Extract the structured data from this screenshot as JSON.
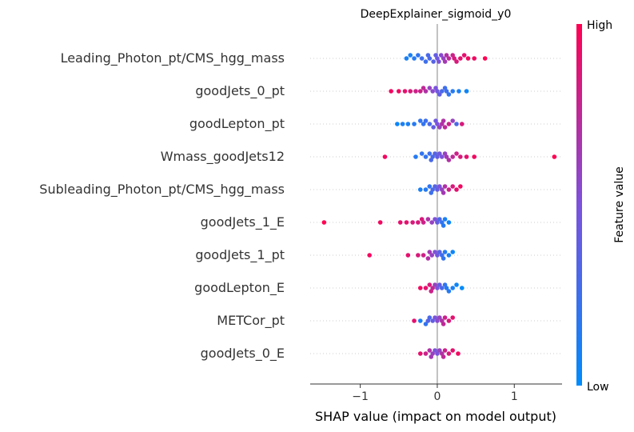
{
  "chart_data": {
    "type": "scatter",
    "subtype": "beeswarm",
    "title": "DeepExplainer_sigmoid_y0",
    "xlabel": "SHAP value (impact on model output)",
    "xlim": [
      -1.65,
      1.62
    ],
    "xticks": [
      {
        "value": -1,
        "label": "−1"
      },
      {
        "value": 0,
        "label": "0"
      },
      {
        "value": 1,
        "label": "1"
      }
    ],
    "colorbar": {
      "label": "Feature value",
      "high_label": "High",
      "low_label": "Low",
      "low_color": "#008bfb",
      "mid_color": "#7c52dc",
      "high_color": "#ff0052"
    },
    "grid": "dotted row guides",
    "features": [
      {
        "name": "Leading_Photon_pt/CMS_hgg_mass",
        "points": [
          [
            -0.4,
            0.1
          ],
          [
            -0.35,
            0.1
          ],
          [
            -0.3,
            0.15
          ],
          [
            -0.25,
            0.2
          ],
          [
            -0.2,
            0.25
          ],
          [
            -0.15,
            0.25
          ],
          [
            -0.1,
            0.3
          ],
          [
            -0.05,
            0.35
          ],
          [
            -0.02,
            0.4
          ],
          [
            0.0,
            0.45
          ],
          [
            0.02,
            0.5
          ],
          [
            0.05,
            0.55
          ],
          [
            0.08,
            0.6
          ],
          [
            0.1,
            0.65
          ],
          [
            0.15,
            0.75
          ],
          [
            0.2,
            0.8
          ],
          [
            0.25,
            0.85
          ],
          [
            0.3,
            0.9
          ],
          [
            0.35,
            0.9
          ],
          [
            0.4,
            0.95
          ],
          [
            0.48,
            0.95
          ],
          [
            0.62,
            1.0
          ],
          [
            -0.12,
            0.3
          ],
          [
            0.12,
            0.7
          ],
          [
            0.22,
            0.85
          ]
        ]
      },
      {
        "name": "goodJets_0_pt",
        "points": [
          [
            -0.6,
            0.95
          ],
          [
            -0.5,
            0.95
          ],
          [
            -0.42,
            0.9
          ],
          [
            -0.35,
            0.85
          ],
          [
            -0.28,
            0.8
          ],
          [
            -0.22,
            0.8
          ],
          [
            -0.15,
            0.7
          ],
          [
            -0.1,
            0.6
          ],
          [
            -0.06,
            0.55
          ],
          [
            -0.02,
            0.5
          ],
          [
            0.0,
            0.45
          ],
          [
            0.03,
            0.4
          ],
          [
            0.06,
            0.3
          ],
          [
            0.1,
            0.25
          ],
          [
            0.15,
            0.2
          ],
          [
            0.2,
            0.15
          ],
          [
            0.28,
            0.1
          ],
          [
            0.38,
            0.05
          ],
          [
            -0.18,
            0.75
          ],
          [
            0.12,
            0.25
          ]
        ]
      },
      {
        "name": "goodLepton_pt",
        "points": [
          [
            -0.52,
            0.05
          ],
          [
            -0.45,
            0.1
          ],
          [
            -0.38,
            0.1
          ],
          [
            -0.3,
            0.15
          ],
          [
            -0.22,
            0.2
          ],
          [
            -0.15,
            0.25
          ],
          [
            -0.1,
            0.3
          ],
          [
            -0.05,
            0.4
          ],
          [
            -0.02,
            0.45
          ],
          [
            0.0,
            0.5
          ],
          [
            0.03,
            0.6
          ],
          [
            0.06,
            0.7
          ],
          [
            0.1,
            0.75
          ],
          [
            0.15,
            0.8
          ],
          [
            0.2,
            0.6
          ],
          [
            0.25,
            0.3
          ],
          [
            0.32,
            0.85
          ],
          [
            -0.18,
            0.2
          ],
          [
            0.08,
            0.7
          ]
        ]
      },
      {
        "name": "Wmass_goodJets12",
        "points": [
          [
            -0.68,
            0.95
          ],
          [
            -0.28,
            0.15
          ],
          [
            -0.2,
            0.2
          ],
          [
            -0.15,
            0.2
          ],
          [
            -0.1,
            0.25
          ],
          [
            -0.06,
            0.3
          ],
          [
            -0.03,
            0.35
          ],
          [
            0.0,
            0.4
          ],
          [
            0.03,
            0.45
          ],
          [
            0.06,
            0.5
          ],
          [
            0.1,
            0.6
          ],
          [
            0.15,
            0.7
          ],
          [
            0.2,
            0.75
          ],
          [
            0.25,
            0.8
          ],
          [
            0.3,
            0.85
          ],
          [
            0.38,
            0.9
          ],
          [
            0.48,
            0.95
          ],
          [
            1.52,
            1.0
          ],
          [
            0.12,
            0.65
          ],
          [
            -0.08,
            0.3
          ]
        ]
      },
      {
        "name": "Subleading_Photon_pt/CMS_hgg_mass",
        "points": [
          [
            -0.22,
            0.1
          ],
          [
            -0.15,
            0.15
          ],
          [
            -0.1,
            0.2
          ],
          [
            -0.06,
            0.3
          ],
          [
            -0.03,
            0.35
          ],
          [
            0.0,
            0.4
          ],
          [
            0.03,
            0.5
          ],
          [
            0.06,
            0.6
          ],
          [
            0.1,
            0.7
          ],
          [
            0.15,
            0.8
          ],
          [
            0.2,
            0.85
          ],
          [
            0.25,
            0.9
          ],
          [
            0.3,
            0.95
          ],
          [
            -0.08,
            0.25
          ],
          [
            0.08,
            0.65
          ]
        ]
      },
      {
        "name": "goodJets_1_E",
        "points": [
          [
            -1.47,
            1.0
          ],
          [
            -0.74,
            0.95
          ],
          [
            -0.48,
            0.9
          ],
          [
            -0.4,
            0.9
          ],
          [
            -0.32,
            0.85
          ],
          [
            -0.25,
            0.85
          ],
          [
            -0.18,
            0.8
          ],
          [
            -0.12,
            0.7
          ],
          [
            -0.07,
            0.6
          ],
          [
            -0.03,
            0.5
          ],
          [
            0.0,
            0.4
          ],
          [
            0.03,
            0.3
          ],
          [
            0.06,
            0.2
          ],
          [
            0.1,
            0.1
          ],
          [
            0.15,
            0.05
          ],
          [
            -0.2,
            0.85
          ],
          [
            0.08,
            0.15
          ]
        ]
      },
      {
        "name": "goodJets_1_pt",
        "points": [
          [
            -0.88,
            0.95
          ],
          [
            -0.38,
            0.9
          ],
          [
            -0.25,
            0.85
          ],
          [
            -0.18,
            0.8
          ],
          [
            -0.12,
            0.7
          ],
          [
            -0.07,
            0.6
          ],
          [
            -0.03,
            0.5
          ],
          [
            0.0,
            0.45
          ],
          [
            0.03,
            0.35
          ],
          [
            0.06,
            0.25
          ],
          [
            0.1,
            0.15
          ],
          [
            0.15,
            0.1
          ],
          [
            0.2,
            0.05
          ],
          [
            -0.1,
            0.65
          ],
          [
            0.08,
            0.2
          ]
        ]
      },
      {
        "name": "goodLepton_E",
        "points": [
          [
            -0.22,
            0.95
          ],
          [
            -0.15,
            0.9
          ],
          [
            -0.1,
            0.85
          ],
          [
            -0.06,
            0.75
          ],
          [
            -0.03,
            0.6
          ],
          [
            0.0,
            0.5
          ],
          [
            0.03,
            0.4
          ],
          [
            0.06,
            0.3
          ],
          [
            0.1,
            0.2
          ],
          [
            0.15,
            0.15
          ],
          [
            0.2,
            0.1
          ],
          [
            0.25,
            0.05
          ],
          [
            0.32,
            0.0
          ],
          [
            -0.08,
            0.8
          ],
          [
            0.12,
            0.15
          ]
        ]
      },
      {
        "name": "METCor_pt",
        "points": [
          [
            -0.3,
            0.9
          ],
          [
            -0.22,
            0.1
          ],
          [
            -0.15,
            0.2
          ],
          [
            -0.1,
            0.3
          ],
          [
            -0.06,
            0.4
          ],
          [
            -0.03,
            0.5
          ],
          [
            0.0,
            0.55
          ],
          [
            0.03,
            0.6
          ],
          [
            0.06,
            0.7
          ],
          [
            0.1,
            0.8
          ],
          [
            0.15,
            0.85
          ],
          [
            0.2,
            0.9
          ],
          [
            -0.12,
            0.35
          ],
          [
            0.08,
            0.75
          ]
        ]
      },
      {
        "name": "goodJets_0_E",
        "points": [
          [
            -0.22,
            0.9
          ],
          [
            -0.15,
            0.8
          ],
          [
            -0.1,
            0.7
          ],
          [
            -0.06,
            0.6
          ],
          [
            -0.03,
            0.5
          ],
          [
            0.0,
            0.5
          ],
          [
            0.03,
            0.6
          ],
          [
            0.06,
            0.7
          ],
          [
            0.1,
            0.8
          ],
          [
            0.15,
            0.85
          ],
          [
            0.2,
            0.9
          ],
          [
            0.27,
            0.95
          ],
          [
            -0.08,
            0.65
          ],
          [
            0.08,
            0.75
          ]
        ]
      }
    ]
  }
}
